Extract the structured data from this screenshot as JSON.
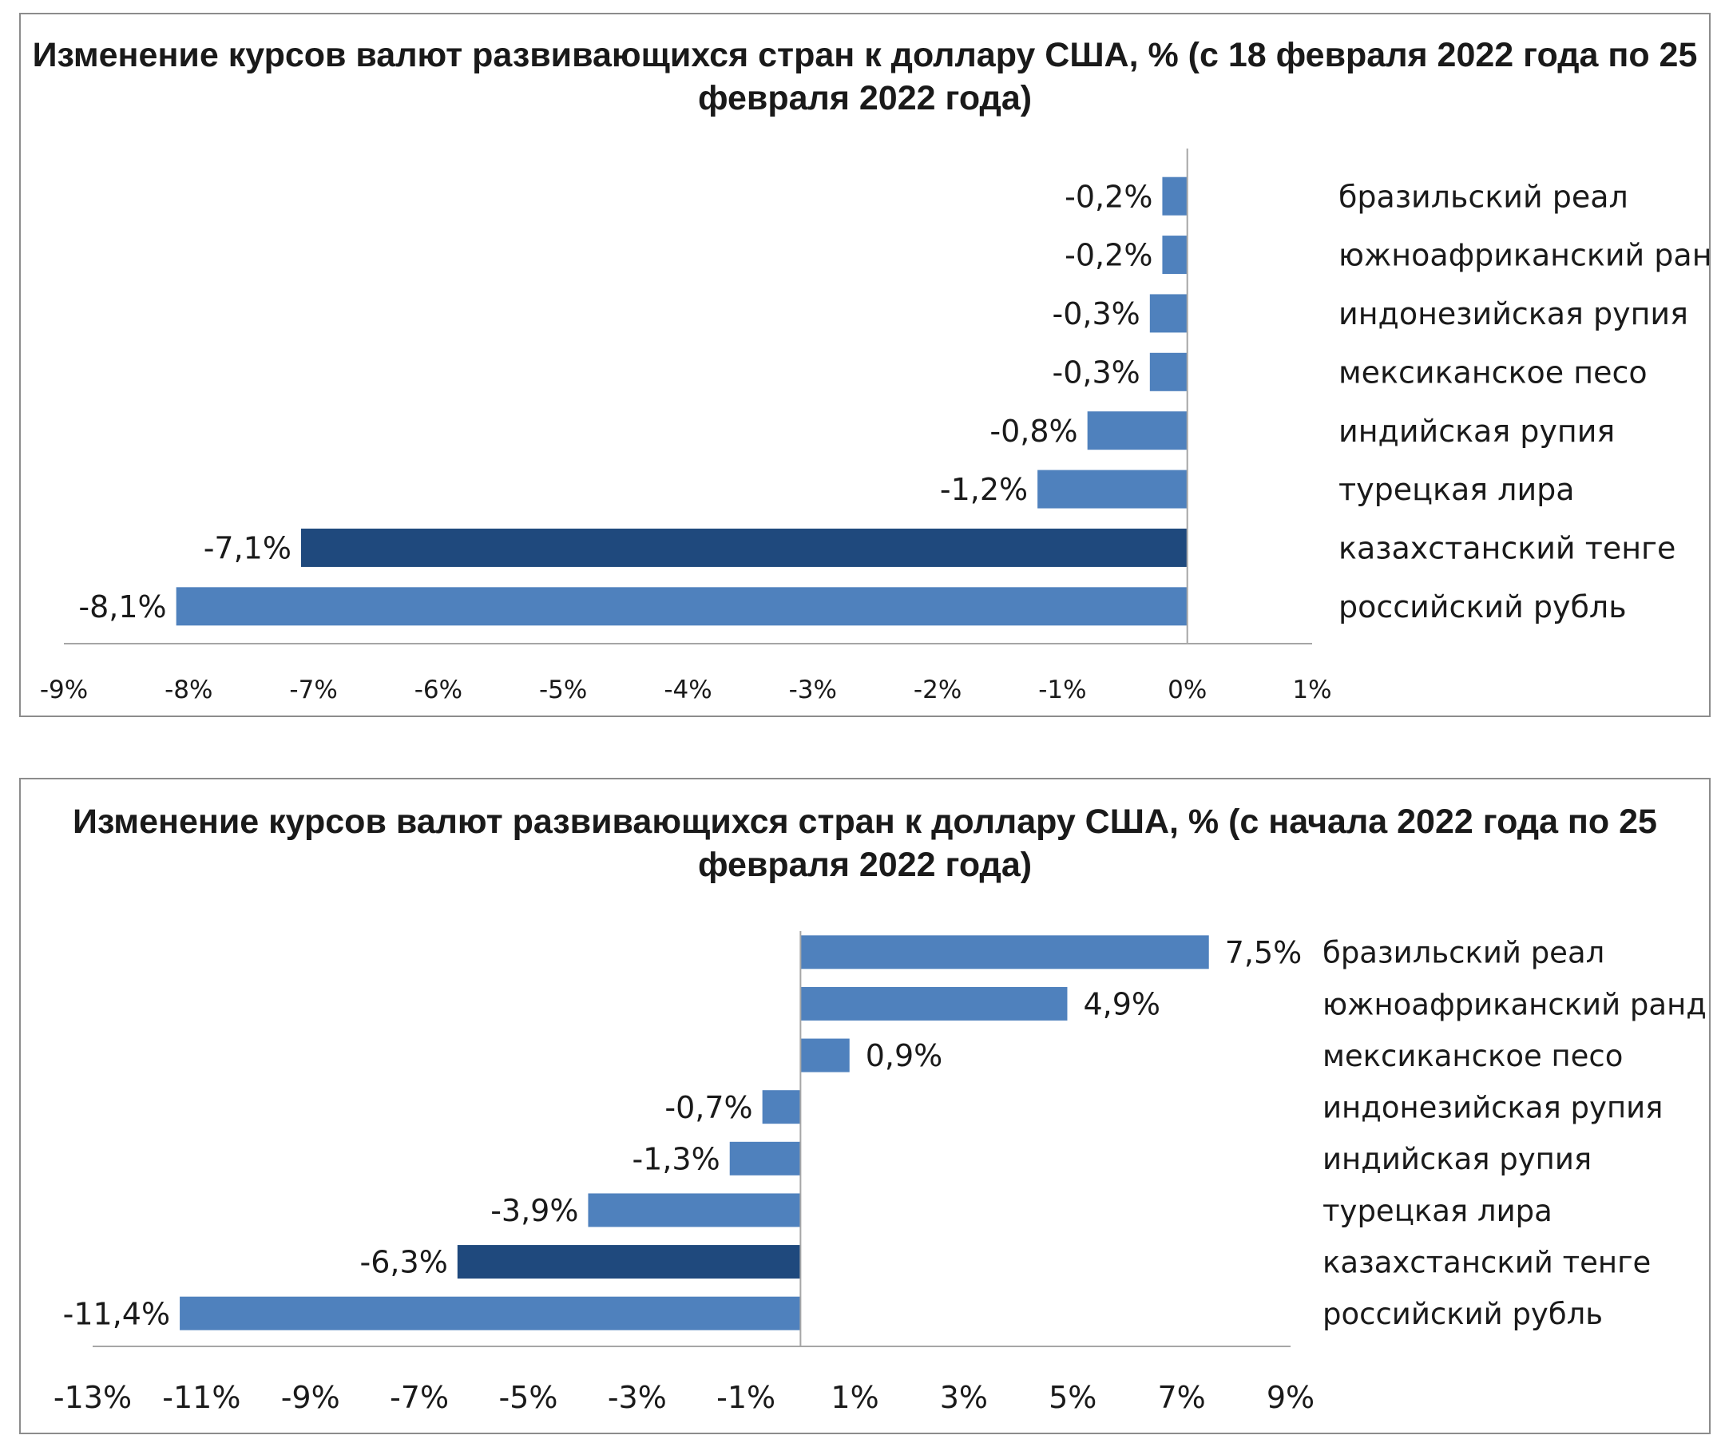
{
  "chart_data": [
    {
      "type": "bar",
      "orientation": "horizontal",
      "title": "Изменение курсов валют развивающихся стран к доллару США, % (с 18 февраля 2022 года по 25 февраля 2022 года)",
      "categories": [
        "бразильский реал",
        "южноафриканский ранд",
        "индонезийская рупия",
        "мексиканское песо",
        "индийская рупия",
        "турецкая лира",
        "казахстанский тенге",
        "российский рубль"
      ],
      "values": [
        -0.2,
        -0.2,
        -0.3,
        -0.3,
        -0.8,
        -1.2,
        -7.1,
        -8.1
      ],
      "value_labels": [
        "-0,2%",
        "-0,2%",
        "-0,3%",
        "-0,3%",
        "-0,8%",
        "-1,2%",
        "-7,1%",
        "-8,1%"
      ],
      "highlight_index": 6,
      "xlim": [
        -9,
        1
      ],
      "x_ticks": [
        -9,
        -8,
        -7,
        -6,
        -5,
        -4,
        -3,
        -2,
        -1,
        0,
        1
      ],
      "x_tick_labels": [
        "-9%",
        "-8%",
        "-7%",
        "-6%",
        "-5%",
        "-4%",
        "-3%",
        "-2%",
        "-1%",
        "0%",
        "1%"
      ],
      "grid": false,
      "colors": {
        "bar": "#4f81bd",
        "highlight": "#1f497d"
      }
    },
    {
      "type": "bar",
      "orientation": "horizontal",
      "title": "Изменение курсов валют развивающихся стран к доллару США, % (с начала 2022 года по 25 февраля 2022 года)",
      "categories": [
        "бразильский реал",
        "южноафриканский ранд",
        "мексиканское песо",
        "индонезийская рупия",
        "индийская рупия",
        "турецкая лира",
        "казахстанский тенге",
        "российский рубль"
      ],
      "values": [
        7.5,
        4.9,
        0.9,
        -0.7,
        -1.3,
        -3.9,
        -6.3,
        -11.4
      ],
      "value_labels": [
        "7,5%",
        "4,9%",
        "0,9%",
        "-0,7%",
        "-1,3%",
        "-3,9%",
        "-6,3%",
        "-11,4%"
      ],
      "highlight_index": 6,
      "xlim": [
        -13,
        9
      ],
      "x_ticks": [
        -13,
        -11,
        -9,
        -7,
        -5,
        -3,
        -1,
        1,
        3,
        5,
        7,
        9
      ],
      "x_tick_labels": [
        "-13%",
        "-11%",
        "-9%",
        "-7%",
        "-5%",
        "-3%",
        "-1%",
        "1%",
        "3%",
        "5%",
        "7%",
        "9%"
      ],
      "grid": false,
      "colors": {
        "bar": "#4f81bd",
        "highlight": "#1f497d"
      }
    }
  ]
}
